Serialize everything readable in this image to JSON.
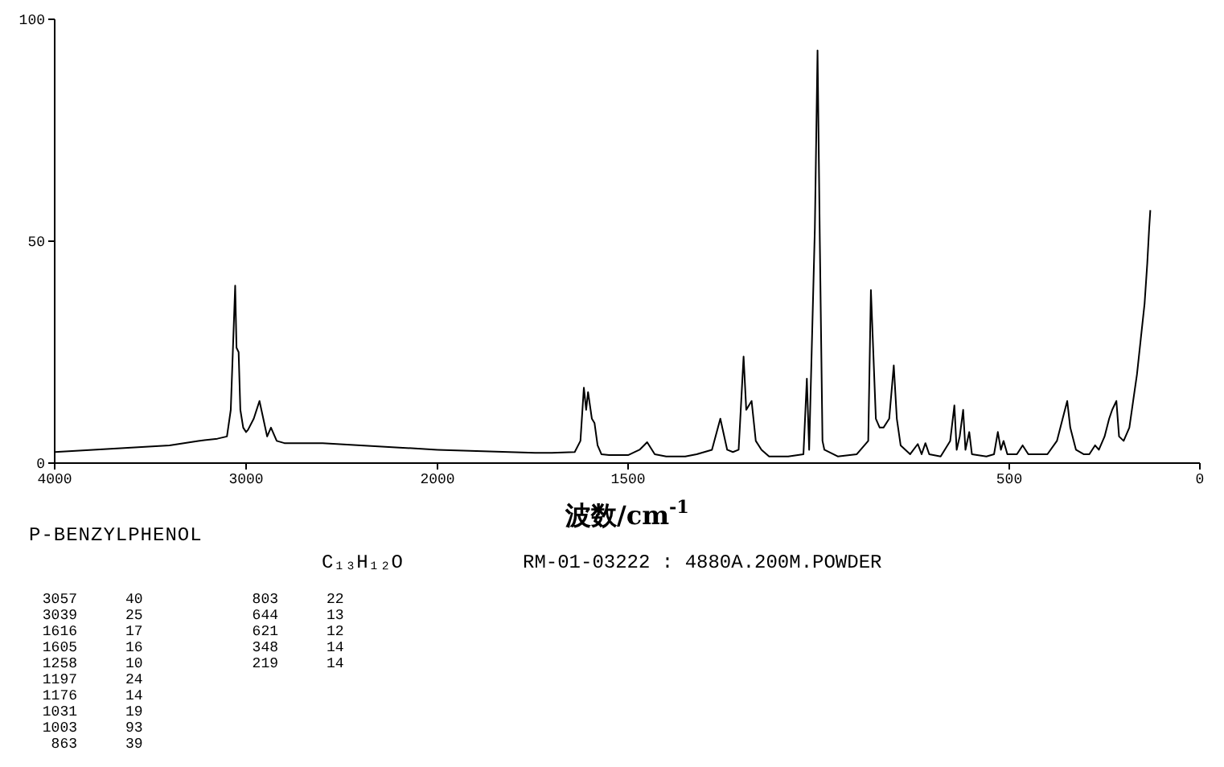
{
  "chart_data": [
    {
      "type": "line",
      "title": "P-BENZYLPHENOL",
      "subtitle": "C₁₃H₁₂O",
      "annotations": [
        "RM-01-03222 : 4880A.200M.POWDER",
        "3057 40",
        "3039 25",
        "1616 17",
        "1605 16",
        "1258 10",
        "1197 24",
        "1176 14",
        "1031 19",
        "1003 93",
        "863 39",
        "803 22",
        "644 13",
        "621 12",
        "348 14",
        "219 14"
      ],
      "xlim": [
        4000,
        2000
      ],
      "ylim": [
        0,
        100
      ],
      "xticks": [
        4000,
        3000
      ],
      "yticks": [
        0,
        50,
        100
      ],
      "marker": "none",
      "line_style": "solid",
      "x": [
        4000,
        3800,
        3600,
        3400,
        3250,
        3150,
        3100,
        3080,
        3057,
        3050,
        3039,
        3030,
        3015,
        3000,
        2990,
        2960,
        2930,
        2910,
        2890,
        2870,
        2840,
        2800,
        2600,
        2400,
        2200,
        2000
      ],
      "series": [
        {
          "color": "#000000",
          "values": [
            2.5,
            3,
            3.5,
            4,
            5,
            5.5,
            6,
            12,
            40,
            26,
            25,
            12,
            8,
            7,
            7.5,
            10,
            14,
            10,
            6,
            8,
            5,
            4.5,
            4.5,
            4,
            3.5,
            3
          ]
        }
      ]
    },
    {
      "type": "line",
      "xlabel": "波数/cm$^{-1}$",
      "xlim": [
        2000,
        0
      ],
      "ylim": [
        0,
        100
      ],
      "xticks": [
        2000,
        1500,
        500,
        0
      ],
      "tick_labels": "x",
      "marker": "none",
      "line_style": "solid",
      "x": [
        2000,
        1744,
        1700,
        1640,
        1625,
        1616,
        1610,
        1605,
        1595,
        1588,
        1580,
        1570,
        1550,
        1500,
        1470,
        1450,
        1430,
        1400,
        1350,
        1320,
        1280,
        1258,
        1240,
        1225,
        1210,
        1197,
        1190,
        1176,
        1165,
        1150,
        1130,
        1080,
        1040,
        1031,
        1025,
        1010,
        1003,
        997,
        990,
        985,
        950,
        900,
        870,
        863,
        850,
        840,
        830,
        815,
        803,
        795,
        785,
        760,
        740,
        730,
        720,
        710,
        680,
        655,
        644,
        638,
        630,
        621,
        615,
        605,
        598,
        560,
        540,
        530,
        522,
        515,
        505,
        480,
        465,
        450,
        400,
        375,
        360,
        348,
        340,
        325,
        305,
        290,
        275,
        265,
        250,
        238,
        230,
        219,
        212,
        200,
        185,
        175,
        165,
        155,
        145,
        138,
        133,
        130
      ],
      "series": [
        {
          "color": "#000000",
          "values": [
            3,
            2.3,
            2.3,
            2.5,
            5,
            17,
            12,
            16,
            10,
            9,
            4,
            2,
            1.8,
            1.8,
            3,
            4.7,
            2,
            1.5,
            1.5,
            2,
            3,
            10,
            3,
            2.5,
            3,
            24,
            12,
            14,
            5,
            3,
            1.5,
            1.5,
            2,
            19,
            3,
            53,
            93,
            50,
            5,
            3,
            1.5,
            2,
            5,
            39,
            10,
            8,
            8,
            10,
            22,
            10,
            4,
            2,
            4.3,
            2,
            4.5,
            2,
            1.5,
            5,
            13,
            3,
            6,
            12,
            3,
            7,
            2,
            1.5,
            2,
            7,
            3,
            5,
            2,
            2,
            4,
            2,
            2,
            5,
            10,
            14,
            8,
            3,
            2,
            2,
            4,
            3,
            6,
            10,
            12,
            14,
            6,
            5,
            8,
            14,
            20,
            28,
            36,
            45,
            53,
            57
          ]
        }
      ]
    }
  ]
}
